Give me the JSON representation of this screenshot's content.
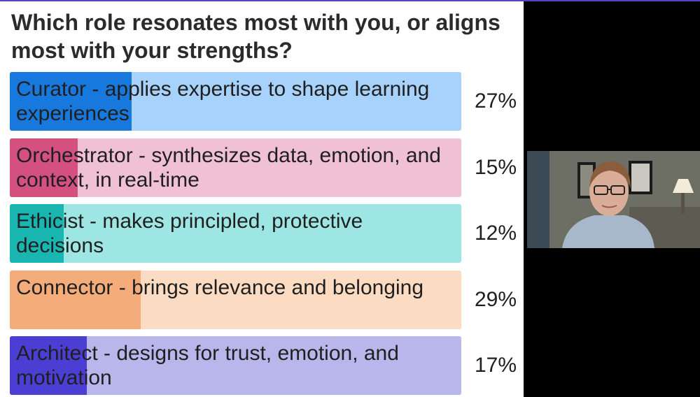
{
  "poll": {
    "question": "Which role resonates most with you, or aligns most with your strengths?",
    "options": [
      {
        "label": "Curator - applies expertise to shape learning experiences",
        "percent_text": "27%",
        "fill_fraction": 0.27,
        "bar_color": "#a7d2fb",
        "fill_color": "#1779de"
      },
      {
        "label": "Orchestrator - synthesizes data, emotion, and context, in real-time",
        "percent_text": "15%",
        "fill_fraction": 0.15,
        "bar_color": "#f0c1d5",
        "fill_color": "#d4507e"
      },
      {
        "label": "Ethicist - makes principled, protective decisions",
        "percent_text": "12%",
        "fill_fraction": 0.12,
        "bar_color": "#9ee6e4",
        "fill_color": "#19b5b1"
      },
      {
        "label": "Connector - brings relevance and belonging",
        "percent_text": "29%",
        "fill_fraction": 0.29,
        "bar_color": "#fbdcc2",
        "fill_color": "#f4ad7a"
      },
      {
        "label": "Architect - designs for trust, emotion, and motivation",
        "percent_text": "17%",
        "fill_fraction": 0.17,
        "bar_color": "#b9b6ec",
        "fill_color": "#4a3ed3"
      }
    ]
  },
  "colors": {
    "background": "#000000",
    "panel": "#ffffff",
    "accent_strip": "#5a3fbf"
  },
  "video": {
    "participant_icon": "participant-video-icon"
  }
}
